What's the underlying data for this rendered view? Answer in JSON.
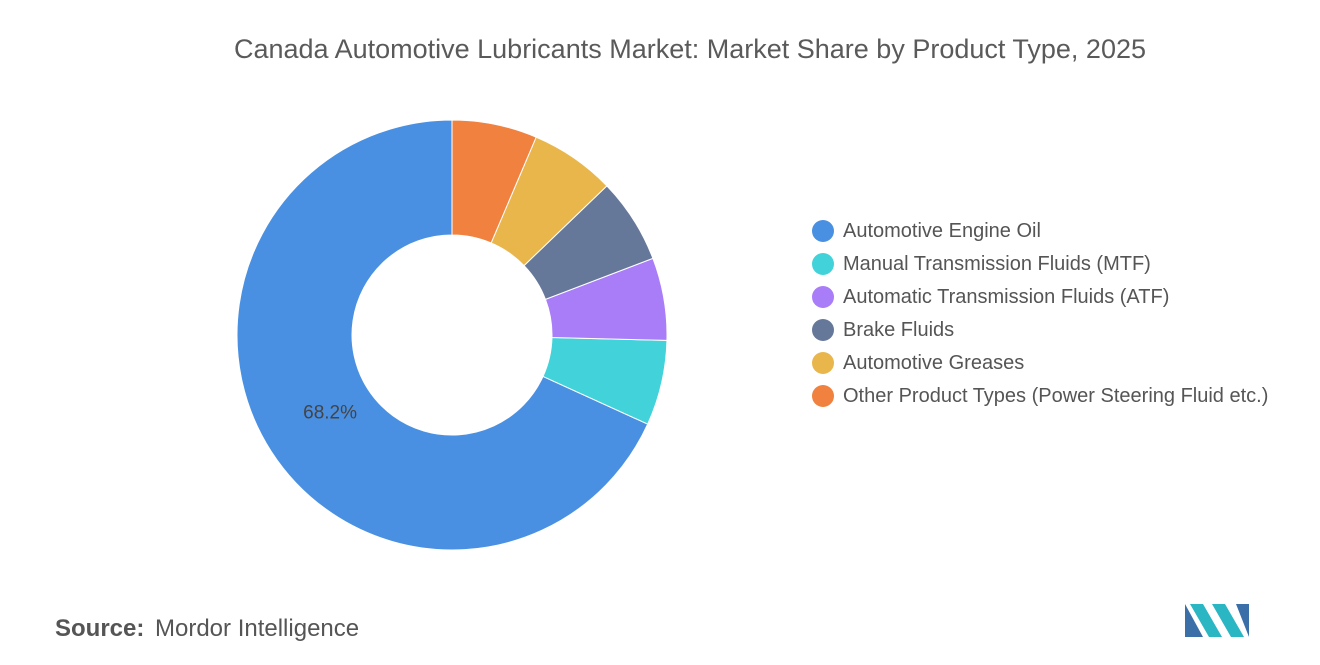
{
  "chart_data": {
    "type": "donut",
    "title": "Canada Automotive Lubricants Market: Market Share by Product Type, 2025",
    "categories": [
      "Automotive Engine Oil",
      "Manual Transmission Fluids (MTF)",
      "Automatic Transmission Fluids (ATF)",
      "Brake Fluids",
      "Automotive Greases",
      "Other Product Types (Power Steering Fluid etc.)"
    ],
    "values": [
      68.2,
      6.4,
      6.2,
      6.4,
      6.4,
      6.4
    ],
    "value_labels": [
      "68.2%",
      null,
      null,
      null,
      null,
      null
    ],
    "colors": [
      "#4a90e2",
      "#41d3d9",
      "#a97cf8",
      "#66789a",
      "#e9b64c",
      "#f0813f"
    ],
    "source_label": "Source:",
    "source": "Mordor Intelligence"
  }
}
